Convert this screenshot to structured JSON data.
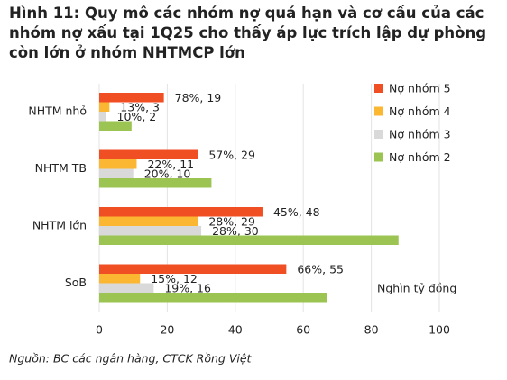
{
  "chart_data": {
    "type": "bar",
    "orientation": "horizontal",
    "title": "Hình 11: Quy mô các nhóm nợ quá hạn và cơ cấu của các nhóm nợ xấu tại 1Q25 cho thấy áp lực trích lập dự phòng còn lớn ở nhóm NHTMCP lớn",
    "categories": [
      "NHTM nhỏ",
      "NHTM TB",
      "NHTM lớn",
      "SoB"
    ],
    "series": [
      {
        "name": "Nợ nhóm 5",
        "color": "#f04e23",
        "values": [
          19,
          29,
          48,
          55
        ],
        "value_labels": [
          "78%, 19",
          "57%, 29",
          "45%, 48",
          "66%, 55"
        ]
      },
      {
        "name": "Nợ nhóm 4",
        "color": "#fbb632",
        "values": [
          3,
          11,
          29,
          12
        ],
        "value_labels": [
          "13%, 3",
          "22%, 11",
          "28%, 29",
          "15%, 12"
        ]
      },
      {
        "name": "Nợ nhóm 3",
        "color": "#d9d9d9",
        "values": [
          2,
          10,
          30,
          16
        ],
        "value_labels": [
          "10%, 2",
          "20%, 10",
          "28%, 30",
          "19%, 16"
        ]
      },
      {
        "name": "Nợ nhóm 2",
        "color": "#9bc453",
        "values": [
          9.5,
          33,
          88,
          67
        ]
      }
    ],
    "xlim": [
      0,
      100
    ],
    "xticks": [
      0,
      20,
      40,
      60,
      80,
      100
    ],
    "grid": true,
    "annotation": "Nghìn tỷ đồng",
    "source": "Nguồn: BC các ngân hàng, CTCK Rồng Việt"
  }
}
